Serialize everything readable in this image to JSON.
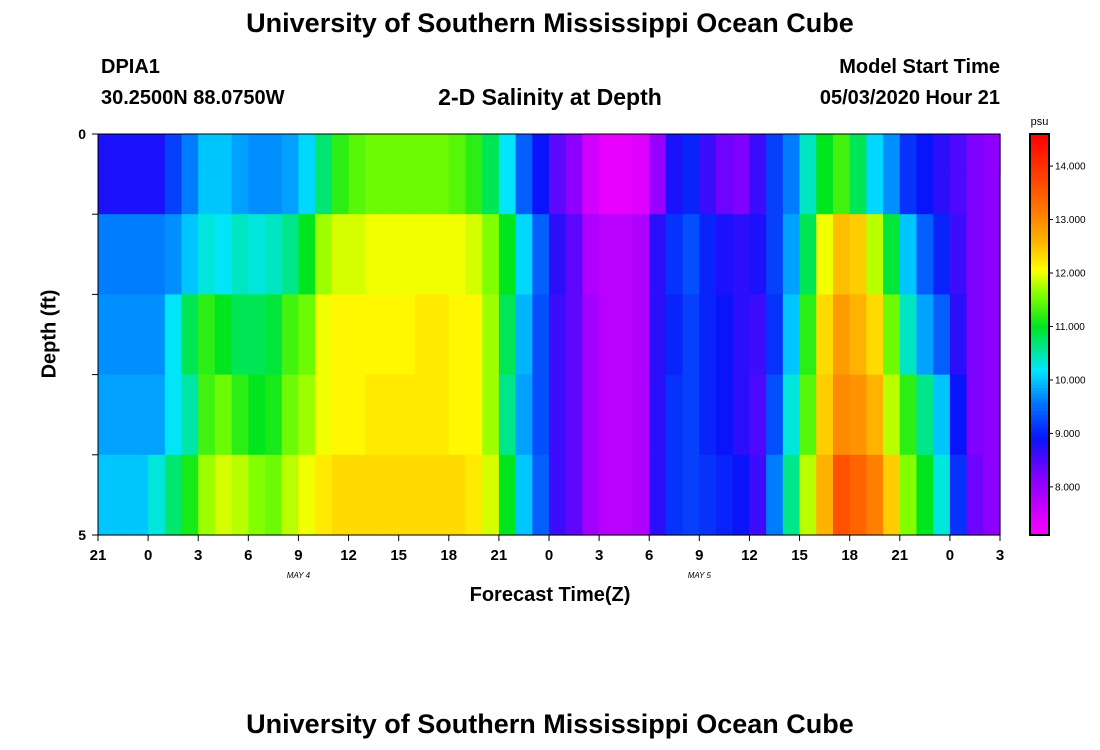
{
  "page": {
    "title": "University of Southern Mississippi Ocean Cube",
    "footer_title": "University of Southern Mississippi Ocean Cube",
    "station": "DPIA1",
    "coords": "30.2500N 88.0750W",
    "subtitle": "2-D Salinity at Depth",
    "model_start_label": "Model Start Time",
    "model_start_value": "05/03/2020 Hour 21"
  },
  "chart_data": {
    "type": "heatmap",
    "title": "2-D Salinity at Depth",
    "xlabel": "Forecast Time(Z)",
    "ylabel": "Depth (ft)",
    "x_ticks": [
      "21",
      "0",
      "3",
      "6",
      "9",
      "12",
      "15",
      "18",
      "21",
      "0",
      "3",
      "6",
      "9",
      "12",
      "15",
      "18",
      "21",
      "0",
      "3"
    ],
    "x_date_labels": [
      {
        "hour": 12,
        "label": "MAY 4"
      },
      {
        "hour": 36,
        "label": "MAY 5"
      }
    ],
    "y_tick_labels": [
      "0",
      "5"
    ],
    "y_range": [
      0,
      5
    ],
    "hours": 54,
    "depth_bins": 5,
    "colorbar": {
      "unit": "psu",
      "min": 7.1,
      "max": 14.6,
      "tick_values": [
        8,
        9,
        10,
        11,
        12,
        13,
        14
      ],
      "tick_labels": [
        "8.000",
        "9.000",
        "10.000",
        "11.000",
        "12.000",
        "13.000",
        "14.000"
      ]
    },
    "salinity_columns_top_to_bottom": [
      [
        8.8,
        9.3,
        9.6,
        9.7,
        9.8,
        10.0
      ],
      [
        8.8,
        9.3,
        9.6,
        9.7,
        9.8,
        10.0
      ],
      [
        8.8,
        9.3,
        9.6,
        9.7,
        9.8,
        10.0
      ],
      [
        8.8,
        9.3,
        9.6,
        9.7,
        9.8,
        10.3
      ],
      [
        9.2,
        9.3,
        9.7,
        10.2,
        10.2,
        10.7
      ],
      [
        9.6,
        9.7,
        10.0,
        10.8,
        10.5,
        11.1
      ],
      [
        10.0,
        10.3,
        10.3,
        11.2,
        11.3,
        11.7
      ],
      [
        10.0,
        10.2,
        10.2,
        11.0,
        11.5,
        11.9
      ],
      [
        9.8,
        10.0,
        10.4,
        10.8,
        11.2,
        11.8
      ],
      [
        9.7,
        10.1,
        10.3,
        10.8,
        11.0,
        11.6
      ],
      [
        9.7,
        10.0,
        10.4,
        10.9,
        11.1,
        11.5
      ],
      [
        9.8,
        10.0,
        10.6,
        11.3,
        11.5,
        11.8
      ],
      [
        10.1,
        10.5,
        11.0,
        11.5,
        11.7,
        12.0
      ],
      [
        10.7,
        11.2,
        11.7,
        12.0,
        12.0,
        12.2
      ],
      [
        11.2,
        11.6,
        11.9,
        12.1,
        12.1,
        12.3
      ],
      [
        11.4,
        11.7,
        11.9,
        12.1,
        12.1,
        12.3
      ],
      [
        11.5,
        11.8,
        12.0,
        12.1,
        12.2,
        12.3
      ],
      [
        11.5,
        11.8,
        12.0,
        12.1,
        12.2,
        12.3
      ],
      [
        11.5,
        11.8,
        12.0,
        12.1,
        12.2,
        12.3
      ],
      [
        11.5,
        11.8,
        12.0,
        12.2,
        12.2,
        12.3
      ],
      [
        11.5,
        11.8,
        12.0,
        12.2,
        12.2,
        12.3
      ],
      [
        11.4,
        11.7,
        12.0,
        12.1,
        12.1,
        12.3
      ],
      [
        11.2,
        11.7,
        11.9,
        12.1,
        12.1,
        12.2
      ],
      [
        10.8,
        11.3,
        11.6,
        11.7,
        11.7,
        11.9
      ],
      [
        10.2,
        10.8,
        11.0,
        10.8,
        10.6,
        11.0
      ],
      [
        9.4,
        9.8,
        10.1,
        9.9,
        9.8,
        10.0
      ],
      [
        8.9,
        9.2,
        9.4,
        9.3,
        9.3,
        9.4
      ],
      [
        8.4,
        8.6,
        8.7,
        8.6,
        8.6,
        8.6
      ],
      [
        8.1,
        8.3,
        8.4,
        8.4,
        8.4,
        8.4
      ],
      [
        7.5,
        7.8,
        7.8,
        7.9,
        7.9,
        7.9
      ],
      [
        7.3,
        7.6,
        7.7,
        7.7,
        7.7,
        7.7
      ],
      [
        7.3,
        7.6,
        7.7,
        7.7,
        7.7,
        7.7
      ],
      [
        7.4,
        7.7,
        7.8,
        7.8,
        7.8,
        7.8
      ],
      [
        8.0,
        8.5,
        8.7,
        8.7,
        8.7,
        8.7
      ],
      [
        8.8,
        9.0,
        9.1,
        9.0,
        9.1,
        9.1
      ],
      [
        9.0,
        9.2,
        9.3,
        9.2,
        9.2,
        9.2
      ],
      [
        8.6,
        9.0,
        9.0,
        9.0,
        9.0,
        9.1
      ],
      [
        8.3,
        8.7,
        8.8,
        8.9,
        8.9,
        9.0
      ],
      [
        8.2,
        8.6,
        8.7,
        8.7,
        8.7,
        8.9
      ],
      [
        8.6,
        8.8,
        8.8,
        8.6,
        8.5,
        8.6
      ],
      [
        9.2,
        9.3,
        9.2,
        9.1,
        9.3,
        9.6
      ],
      [
        9.6,
        9.7,
        9.8,
        10.0,
        10.3,
        10.6
      ],
      [
        10.4,
        10.5,
        10.8,
        11.2,
        11.4,
        11.8
      ],
      [
        11.0,
        11.6,
        12.0,
        12.3,
        12.4,
        12.6
      ],
      [
        11.3,
        12.3,
        12.5,
        12.8,
        13.0,
        13.6
      ],
      [
        10.8,
        12.2,
        12.4,
        12.6,
        12.9,
        13.4
      ],
      [
        10.1,
        11.5,
        11.8,
        12.3,
        12.6,
        13.1
      ],
      [
        9.7,
        10.6,
        10.9,
        11.5,
        11.8,
        12.4
      ],
      [
        9.1,
        9.8,
        10.0,
        10.4,
        11.2,
        11.6
      ],
      [
        8.9,
        9.2,
        9.4,
        9.8,
        10.6,
        11.0
      ],
      [
        8.7,
        8.9,
        9.0,
        9.4,
        10.0,
        10.3
      ],
      [
        8.5,
        8.6,
        8.6,
        8.7,
        8.9,
        9.1
      ],
      [
        8.2,
        8.2,
        8.2,
        8.2,
        8.2,
        8.3
      ],
      [
        8.1,
        8.1,
        8.1,
        8.1,
        8.1,
        8.1
      ]
    ]
  }
}
